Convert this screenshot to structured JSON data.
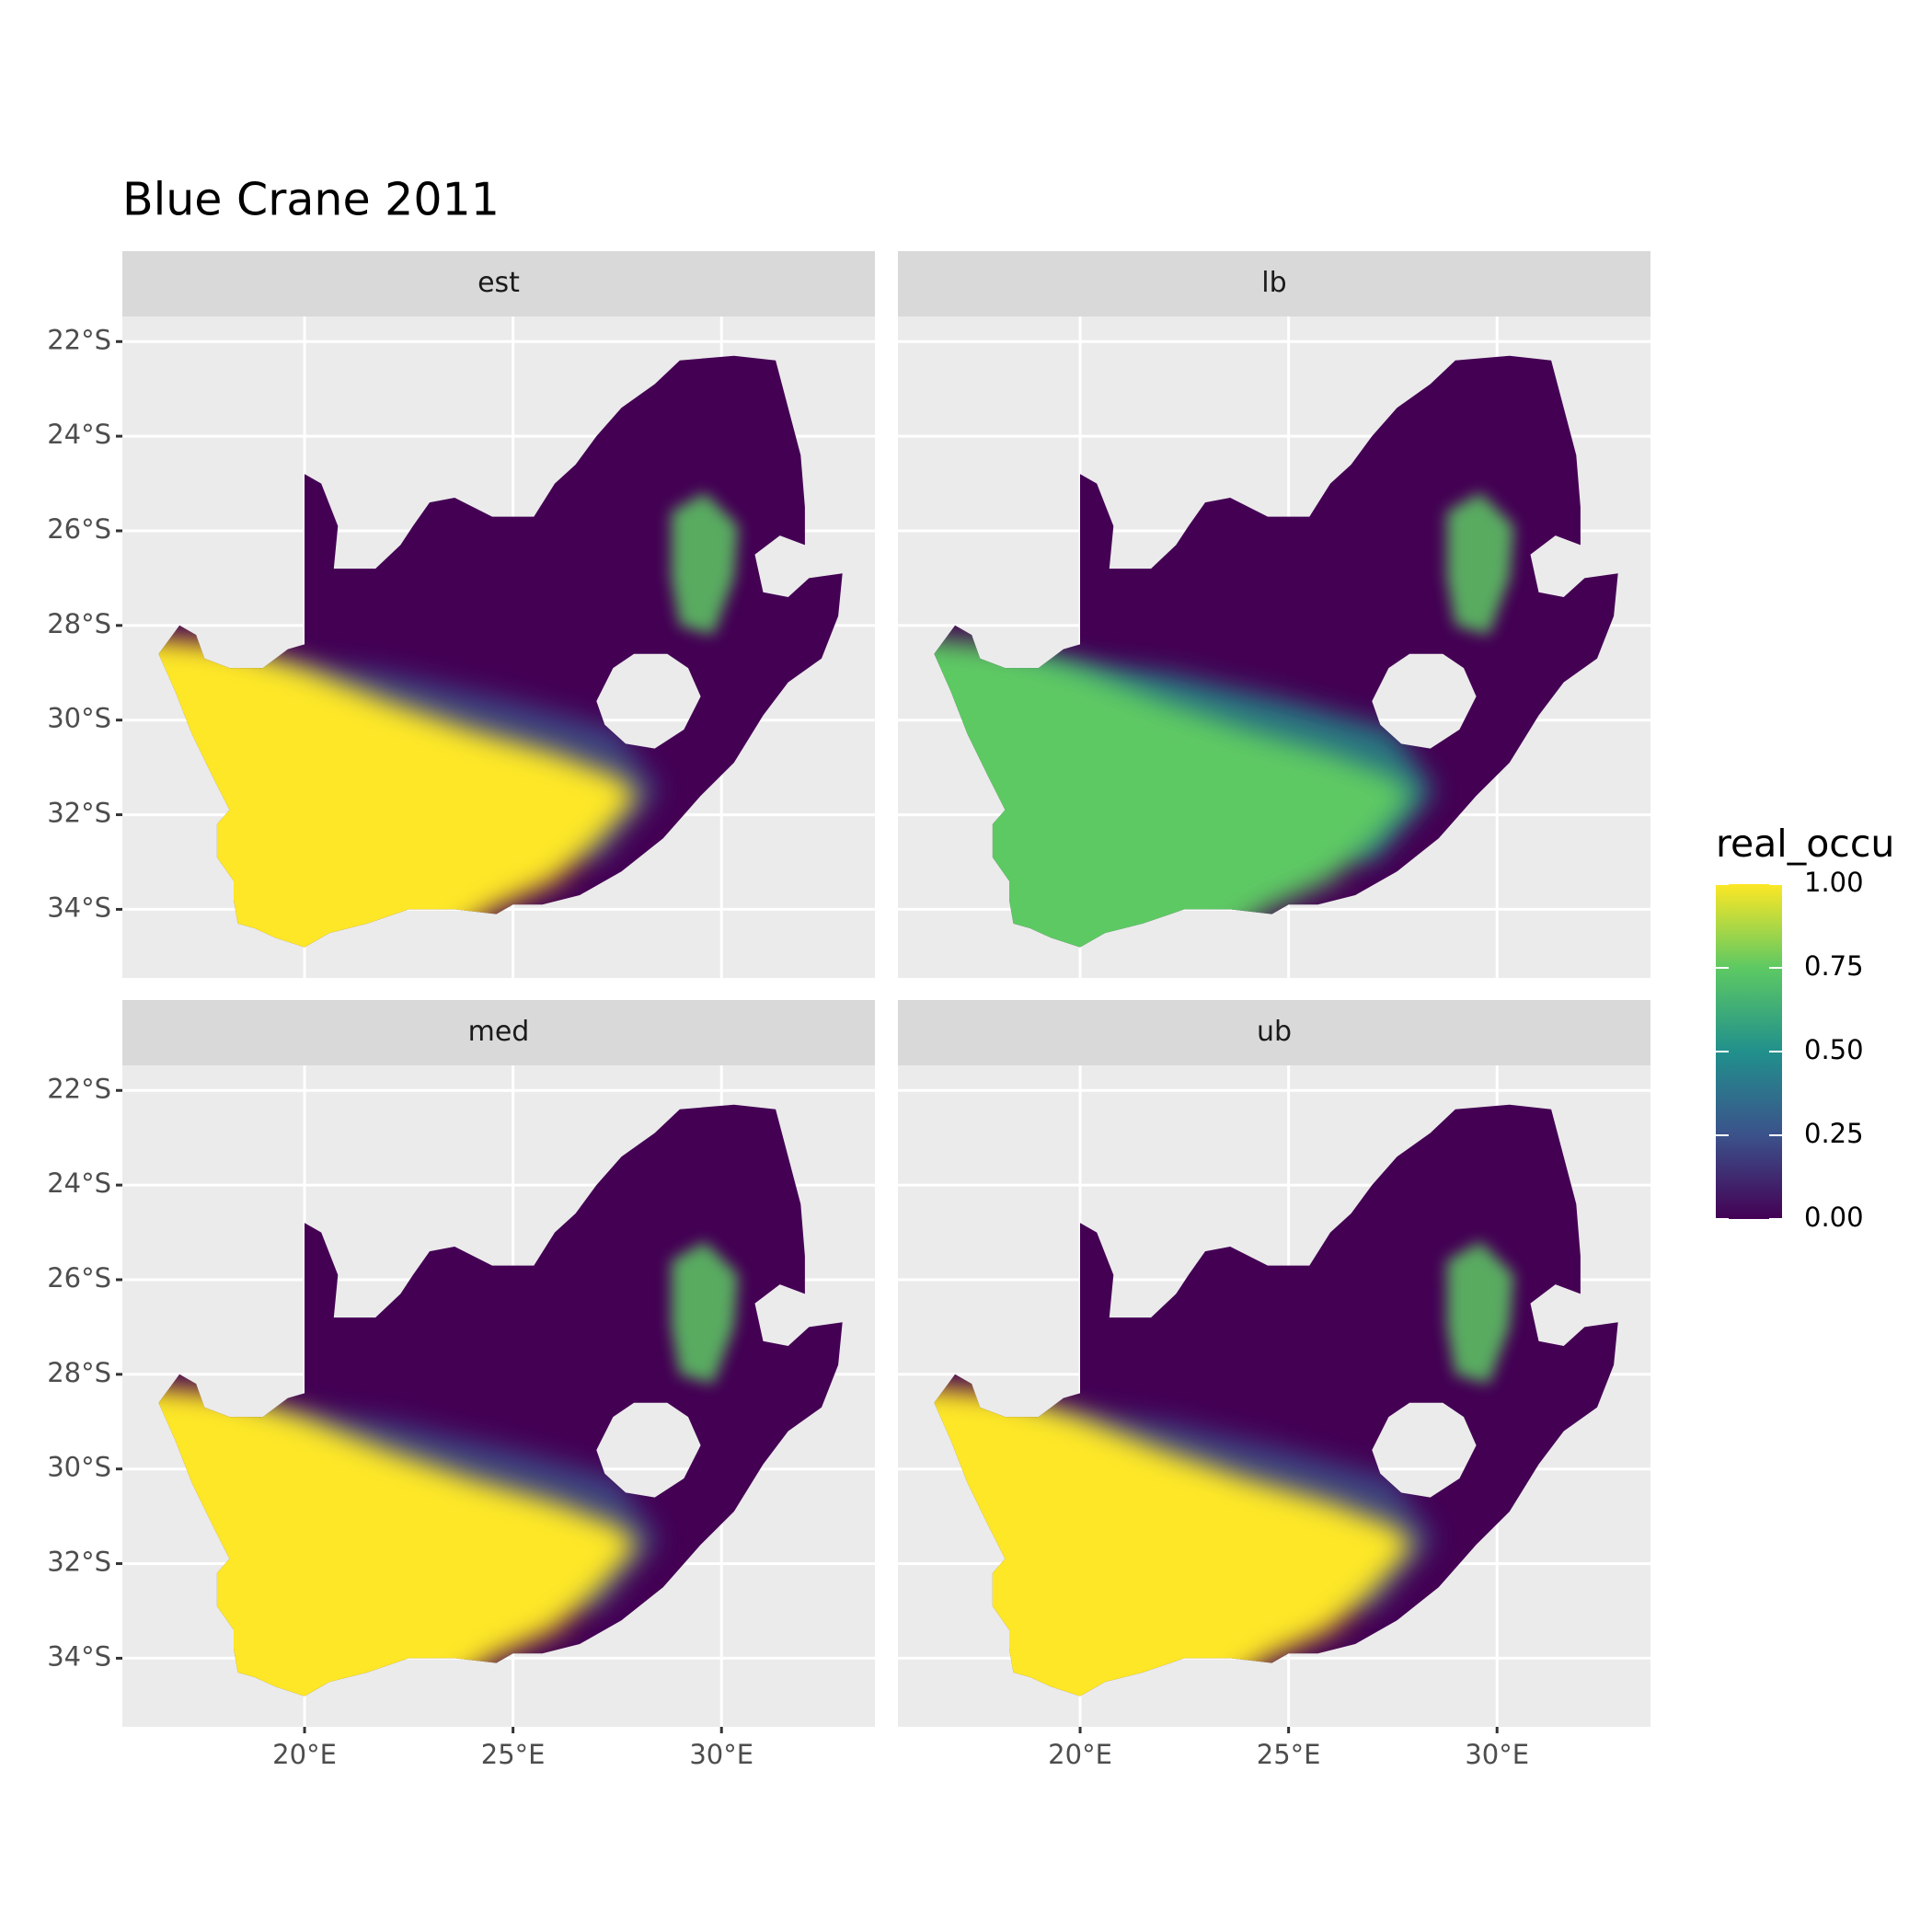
{
  "chart_data": {
    "type": "facet-map",
    "title": "Blue Crane 2011",
    "panels": [
      "est",
      "lb",
      "med",
      "ub"
    ],
    "xlim": [
      15.63,
      33.68
    ],
    "ylim": [
      -35.45,
      -21.47
    ],
    "xticks": [
      {
        "value": 20,
        "label": "20°E"
      },
      {
        "value": 25,
        "label": "25°E"
      },
      {
        "value": 30,
        "label": "30°E"
      }
    ],
    "yticks": [
      {
        "value": -22,
        "label": "22°S"
      },
      {
        "value": -24,
        "label": "24°S"
      },
      {
        "value": -26,
        "label": "26°S"
      },
      {
        "value": -28,
        "label": "28°S"
      },
      {
        "value": -30,
        "label": "30°S"
      },
      {
        "value": -32,
        "label": "32°S"
      },
      {
        "value": -34,
        "label": "34°S"
      }
    ],
    "legend": {
      "title": "real_occu",
      "limits": [
        0,
        1
      ],
      "ticks": [
        {
          "value": 0,
          "label": "0.00"
        },
        {
          "value": 0.25,
          "label": "0.25"
        },
        {
          "value": 0.5,
          "label": "0.50"
        },
        {
          "value": 0.75,
          "label": "0.75"
        },
        {
          "value": 1,
          "label": "1.00"
        }
      ],
      "colors": [
        "#440154",
        "#3b528b",
        "#21908c",
        "#5dc963",
        "#fde725"
      ]
    },
    "grid": true
  }
}
